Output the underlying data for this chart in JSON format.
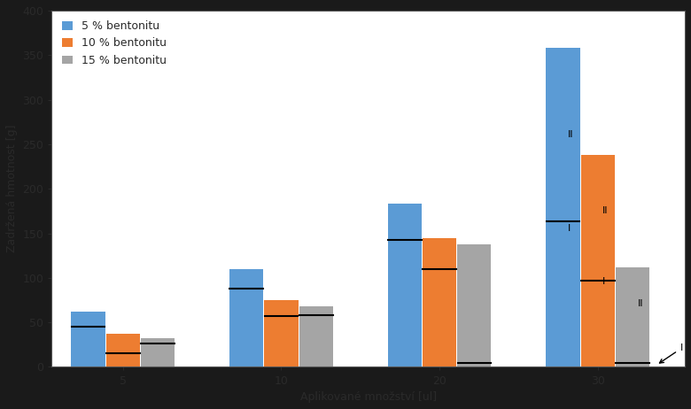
{
  "categories": [
    5,
    10,
    20,
    30
  ],
  "series": {
    "5 % bentonitu": {
      "color": "#5B9BD5",
      "values": [
        62,
        110,
        183,
        358
      ],
      "line_values": [
        45,
        88,
        143,
        163
      ]
    },
    "10 % bentonitu": {
      "color": "#ED7D31",
      "values": [
        37,
        75,
        145,
        238
      ],
      "line_values": [
        15,
        57,
        110,
        97
      ]
    },
    "15 % bentonitu": {
      "color": "#A5A5A5",
      "values": [
        32,
        68,
        138,
        112
      ],
      "line_values": [
        26,
        58,
        4,
        4
      ]
    }
  },
  "ylabel": "Zadržená hmotnost [g]",
  "xlabel": "Aplikované množství [ul]",
  "ylim": [
    0,
    400
  ],
  "yticks": [
    0,
    50,
    100,
    150,
    200,
    250,
    300,
    350,
    400
  ],
  "xticks_labels": [
    "5",
    "10",
    "20",
    "30"
  ],
  "bar_width": 0.22,
  "fig_bg": "#1a1a1a",
  "plot_bg": "#FFFFFF",
  "text_color": "#2a2a2a",
  "spine_color": "#555555",
  "legend_loc": "upper left"
}
